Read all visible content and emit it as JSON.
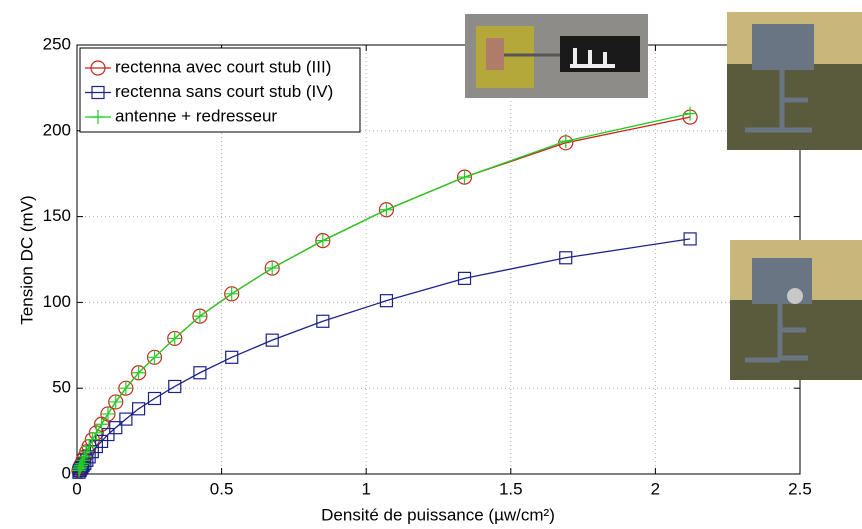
{
  "chart_data": {
    "type": "line",
    "xlabel": "Densité de puissance (µw/cm²)",
    "ylabel": "Tension DC (mV)",
    "x": [
      2.12,
      1.69,
      1.34,
      1.07,
      0.85,
      0.675,
      0.535,
      0.425,
      0.338,
      0.268,
      0.213,
      0.169,
      0.134,
      0.107,
      0.085,
      0.067,
      0.053,
      0.042,
      0.034,
      0.027,
      0.021,
      0.017,
      0.0135,
      0.0107,
      0.0085,
      0.0067
    ],
    "series": [
      {
        "name": "rectenna avec court stub (III)",
        "color": "#c8281e",
        "marker": "circle",
        "values": [
          208,
          193,
          173,
          154,
          136,
          120,
          105,
          92,
          79,
          68,
          59,
          50,
          42,
          35,
          29,
          24,
          20,
          16,
          13,
          10,
          8,
          6,
          5,
          4,
          3,
          2
        ]
      },
      {
        "name": "rectenna sans court stub (IV)",
        "color": "#1c2288",
        "marker": "square",
        "values": [
          137,
          126,
          114,
          101,
          89,
          78,
          68,
          59,
          51,
          44,
          38,
          32,
          27,
          23,
          19,
          16,
          13,
          10,
          8,
          6,
          5,
          4,
          3,
          2,
          2,
          1
        ]
      },
      {
        "name": "antenne + redresseur",
        "color": "#22cc22",
        "marker": "plus",
        "values": [
          210,
          194,
          173,
          154,
          136,
          120,
          105,
          92,
          79,
          68,
          59,
          50,
          42,
          35,
          29,
          24,
          20,
          16,
          13,
          10,
          8,
          6,
          5,
          4,
          3,
          2
        ]
      }
    ],
    "xlim": [
      0,
      2.5
    ],
    "xticks": [
      0,
      0.5,
      1,
      1.5,
      2,
      2.5
    ],
    "ylim": [
      0,
      250
    ],
    "yticks": [
      0,
      50,
      100,
      150,
      200,
      250
    ],
    "grid": true,
    "legend": "upper left"
  }
}
